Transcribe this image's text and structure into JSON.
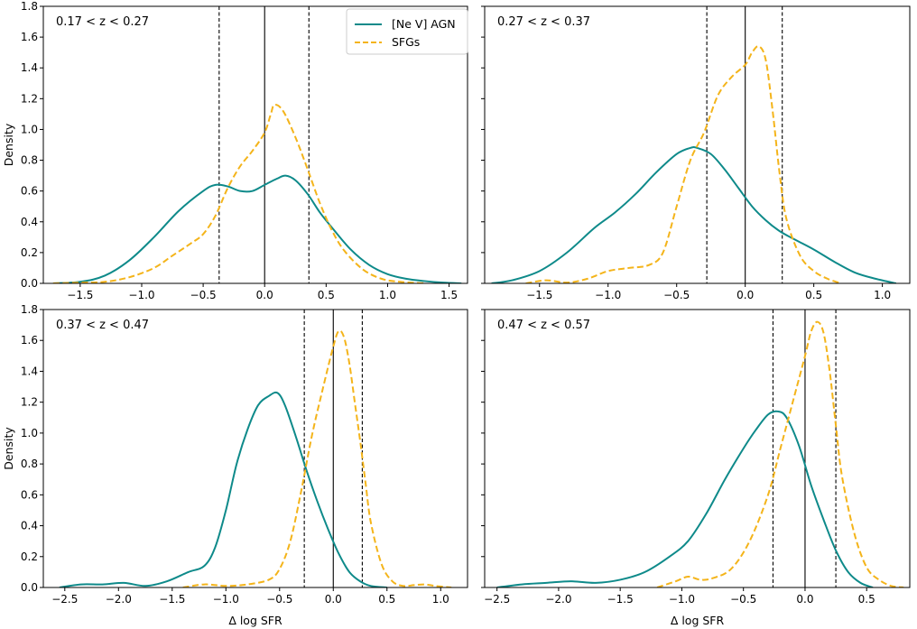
{
  "chart_data": {
    "type": "line",
    "shared_y": true,
    "ylabel": "Density",
    "ylim": [
      0,
      1.8
    ],
    "yticks": [
      "0.0",
      "0.2",
      "0.4",
      "0.6",
      "0.8",
      "1.0",
      "1.2",
      "1.4",
      "1.6",
      "1.8"
    ],
    "xlabel": "Δ log SFR",
    "colors": {
      "agn": "#0e8a8a",
      "sfg": "#f4b41a"
    },
    "legend": {
      "placement": "top-right of first panel",
      "entries": [
        {
          "key": "agn",
          "label": "[Ne V] AGN",
          "style": "solid"
        },
        {
          "key": "sfg",
          "label": "SFGs",
          "style": "dashed"
        }
      ]
    },
    "panels": [
      {
        "label": "0.17 < z < 0.27",
        "xlim": [
          -1.8,
          1.65
        ],
        "xticks": [
          -1.5,
          -1.0,
          -0.5,
          0.0,
          0.5,
          1.0,
          1.5
        ],
        "xticklabels": [
          "−1.5",
          "−1.0",
          "−0.5",
          "0.0",
          "0.5",
          "1.0",
          "1.5"
        ],
        "show_xlabel": false,
        "show_yticklabels": true,
        "vlines": {
          "solid": [
            0.0
          ],
          "dashed": [
            -0.37,
            0.36
          ]
        },
        "series": {
          "agn": {
            "x": [
              -1.72,
              -1.5,
              -1.3,
              -1.1,
              -0.9,
              -0.7,
              -0.5,
              -0.4,
              -0.3,
              -0.2,
              -0.1,
              0.0,
              0.1,
              0.17,
              0.25,
              0.35,
              0.45,
              0.55,
              0.7,
              0.85,
              1.0,
              1.15,
              1.3,
              1.45,
              1.6
            ],
            "y": [
              0.0,
              0.01,
              0.05,
              0.15,
              0.3,
              0.47,
              0.6,
              0.64,
              0.63,
              0.6,
              0.6,
              0.64,
              0.68,
              0.7,
              0.67,
              0.58,
              0.46,
              0.36,
              0.22,
              0.12,
              0.06,
              0.03,
              0.015,
              0.005,
              0.0
            ]
          },
          "sfg": {
            "x": [
              -1.72,
              -1.5,
              -1.3,
              -1.1,
              -0.9,
              -0.75,
              -0.6,
              -0.5,
              -0.4,
              -0.3,
              -0.2,
              -0.1,
              0.0,
              0.05,
              0.08,
              0.15,
              0.25,
              0.35,
              0.45,
              0.55,
              0.65,
              0.8,
              0.95,
              1.1,
              1.3
            ],
            "y": [
              0.0,
              0.005,
              0.01,
              0.04,
              0.1,
              0.18,
              0.26,
              0.32,
              0.44,
              0.62,
              0.76,
              0.86,
              0.98,
              1.1,
              1.16,
              1.12,
              0.95,
              0.74,
              0.52,
              0.34,
              0.21,
              0.09,
              0.03,
              0.01,
              0.0
            ]
          }
        }
      },
      {
        "label": "0.27 < z < 0.37",
        "xlim": [
          -1.9,
          1.2
        ],
        "xticks": [
          -1.5,
          -1.0,
          -0.5,
          0.0,
          0.5,
          1.0
        ],
        "xticklabels": [
          "−1.5",
          "−1.0",
          "−0.5",
          "0.0",
          "0.5",
          "1.0"
        ],
        "show_xlabel": false,
        "show_yticklabels": false,
        "vlines": {
          "solid": [
            0.0
          ],
          "dashed": [
            -0.28,
            0.27
          ]
        },
        "series": {
          "agn": {
            "x": [
              -1.85,
              -1.7,
              -1.5,
              -1.3,
              -1.1,
              -0.95,
              -0.8,
              -0.65,
              -0.5,
              -0.4,
              -0.35,
              -0.25,
              -0.15,
              -0.05,
              0.05,
              0.15,
              0.25,
              0.35,
              0.5,
              0.65,
              0.8,
              0.95,
              1.1
            ],
            "y": [
              0.0,
              0.02,
              0.08,
              0.2,
              0.36,
              0.46,
              0.58,
              0.72,
              0.84,
              0.88,
              0.88,
              0.84,
              0.74,
              0.62,
              0.5,
              0.41,
              0.34,
              0.29,
              0.22,
              0.14,
              0.07,
              0.03,
              0.0
            ]
          },
          "sfg": {
            "x": [
              -1.6,
              -1.45,
              -1.3,
              -1.15,
              -1.0,
              -0.85,
              -0.7,
              -0.6,
              -0.5,
              -0.4,
              -0.3,
              -0.2,
              -0.1,
              0.0,
              0.05,
              0.1,
              0.15,
              0.2,
              0.25,
              0.3,
              0.4,
              0.5,
              0.6,
              0.7
            ],
            "y": [
              0.0,
              0.02,
              0.005,
              0.03,
              0.08,
              0.1,
              0.12,
              0.2,
              0.5,
              0.8,
              0.98,
              1.22,
              1.34,
              1.42,
              1.5,
              1.54,
              1.45,
              1.12,
              0.72,
              0.42,
              0.18,
              0.08,
              0.03,
              0.0
            ]
          }
        }
      },
      {
        "label": "0.37 < z < 0.47",
        "xlim": [
          -2.7,
          1.25
        ],
        "xticks": [
          -2.5,
          -2.0,
          -1.5,
          -1.0,
          -0.5,
          0.0,
          0.5,
          1.0
        ],
        "xticklabels": [
          "−2.5",
          "−2.0",
          "−1.5",
          "−1.0",
          "−0.5",
          "0.0",
          "0.5",
          "1.0"
        ],
        "show_xlabel": true,
        "show_yticklabels": true,
        "vlines": {
          "solid": [
            0.0
          ],
          "dashed": [
            -0.27,
            0.27
          ]
        },
        "series": {
          "agn": {
            "x": [
              -2.55,
              -2.35,
              -2.15,
              -1.95,
              -1.75,
              -1.55,
              -1.35,
              -1.2,
              -1.1,
              -1.0,
              -0.9,
              -0.8,
              -0.7,
              -0.6,
              -0.52,
              -0.45,
              -0.35,
              -0.25,
              -0.15,
              -0.05,
              0.05,
              0.15,
              0.25,
              0.35,
              0.5
            ],
            "y": [
              0.0,
              0.02,
              0.02,
              0.03,
              0.01,
              0.04,
              0.1,
              0.14,
              0.26,
              0.5,
              0.8,
              1.02,
              1.18,
              1.24,
              1.26,
              1.18,
              0.98,
              0.76,
              0.56,
              0.38,
              0.22,
              0.1,
              0.04,
              0.01,
              0.0
            ]
          },
          "sfg": {
            "x": [
              -1.4,
              -1.2,
              -1.0,
              -0.8,
              -0.6,
              -0.5,
              -0.4,
              -0.3,
              -0.2,
              -0.1,
              0.0,
              0.05,
              0.1,
              0.15,
              0.2,
              0.25,
              0.3,
              0.35,
              0.45,
              0.55,
              0.65,
              0.75,
              0.85,
              0.95,
              1.1
            ],
            "y": [
              0.0,
              0.02,
              0.01,
              0.02,
              0.05,
              0.12,
              0.3,
              0.62,
              0.98,
              1.28,
              1.56,
              1.66,
              1.62,
              1.45,
              1.2,
              0.95,
              0.68,
              0.42,
              0.15,
              0.04,
              0.01,
              0.015,
              0.02,
              0.01,
              0.0
            ]
          }
        }
      },
      {
        "label": "0.47 < z < 0.57",
        "xlim": [
          -2.6,
          0.85
        ],
        "xticks": [
          -2.5,
          -2.0,
          -1.5,
          -1.0,
          -0.5,
          0.0,
          0.5
        ],
        "xticklabels": [
          "−2.5",
          "−2.0",
          "−1.5",
          "−1.0",
          "−0.5",
          "0.0",
          "0.5"
        ],
        "show_xlabel": true,
        "show_yticklabels": false,
        "vlines": {
          "solid": [
            0.0
          ],
          "dashed": [
            -0.26,
            0.25
          ]
        },
        "series": {
          "agn": {
            "x": [
              -2.5,
              -2.3,
              -2.1,
              -1.9,
              -1.7,
              -1.5,
              -1.3,
              -1.1,
              -0.95,
              -0.8,
              -0.65,
              -0.5,
              -0.4,
              -0.3,
              -0.22,
              -0.15,
              -0.05,
              0.05,
              0.15,
              0.25,
              0.35,
              0.45,
              0.55
            ],
            "y": [
              0.0,
              0.02,
              0.03,
              0.04,
              0.03,
              0.05,
              0.1,
              0.2,
              0.3,
              0.48,
              0.7,
              0.9,
              1.02,
              1.12,
              1.14,
              1.1,
              0.92,
              0.66,
              0.44,
              0.24,
              0.1,
              0.03,
              0.0
            ]
          },
          "sfg": {
            "x": [
              -1.2,
              -1.05,
              -0.95,
              -0.85,
              -0.75,
              -0.6,
              -0.45,
              -0.3,
              -0.2,
              -0.1,
              0.0,
              0.05,
              0.1,
              0.15,
              0.2,
              0.25,
              0.3,
              0.4,
              0.5,
              0.6,
              0.7,
              0.8
            ],
            "y": [
              0.0,
              0.04,
              0.07,
              0.05,
              0.06,
              0.12,
              0.3,
              0.6,
              0.9,
              1.2,
              1.5,
              1.66,
              1.72,
              1.65,
              1.4,
              1.05,
              0.72,
              0.35,
              0.13,
              0.05,
              0.01,
              0.0
            ]
          }
        }
      }
    ]
  }
}
